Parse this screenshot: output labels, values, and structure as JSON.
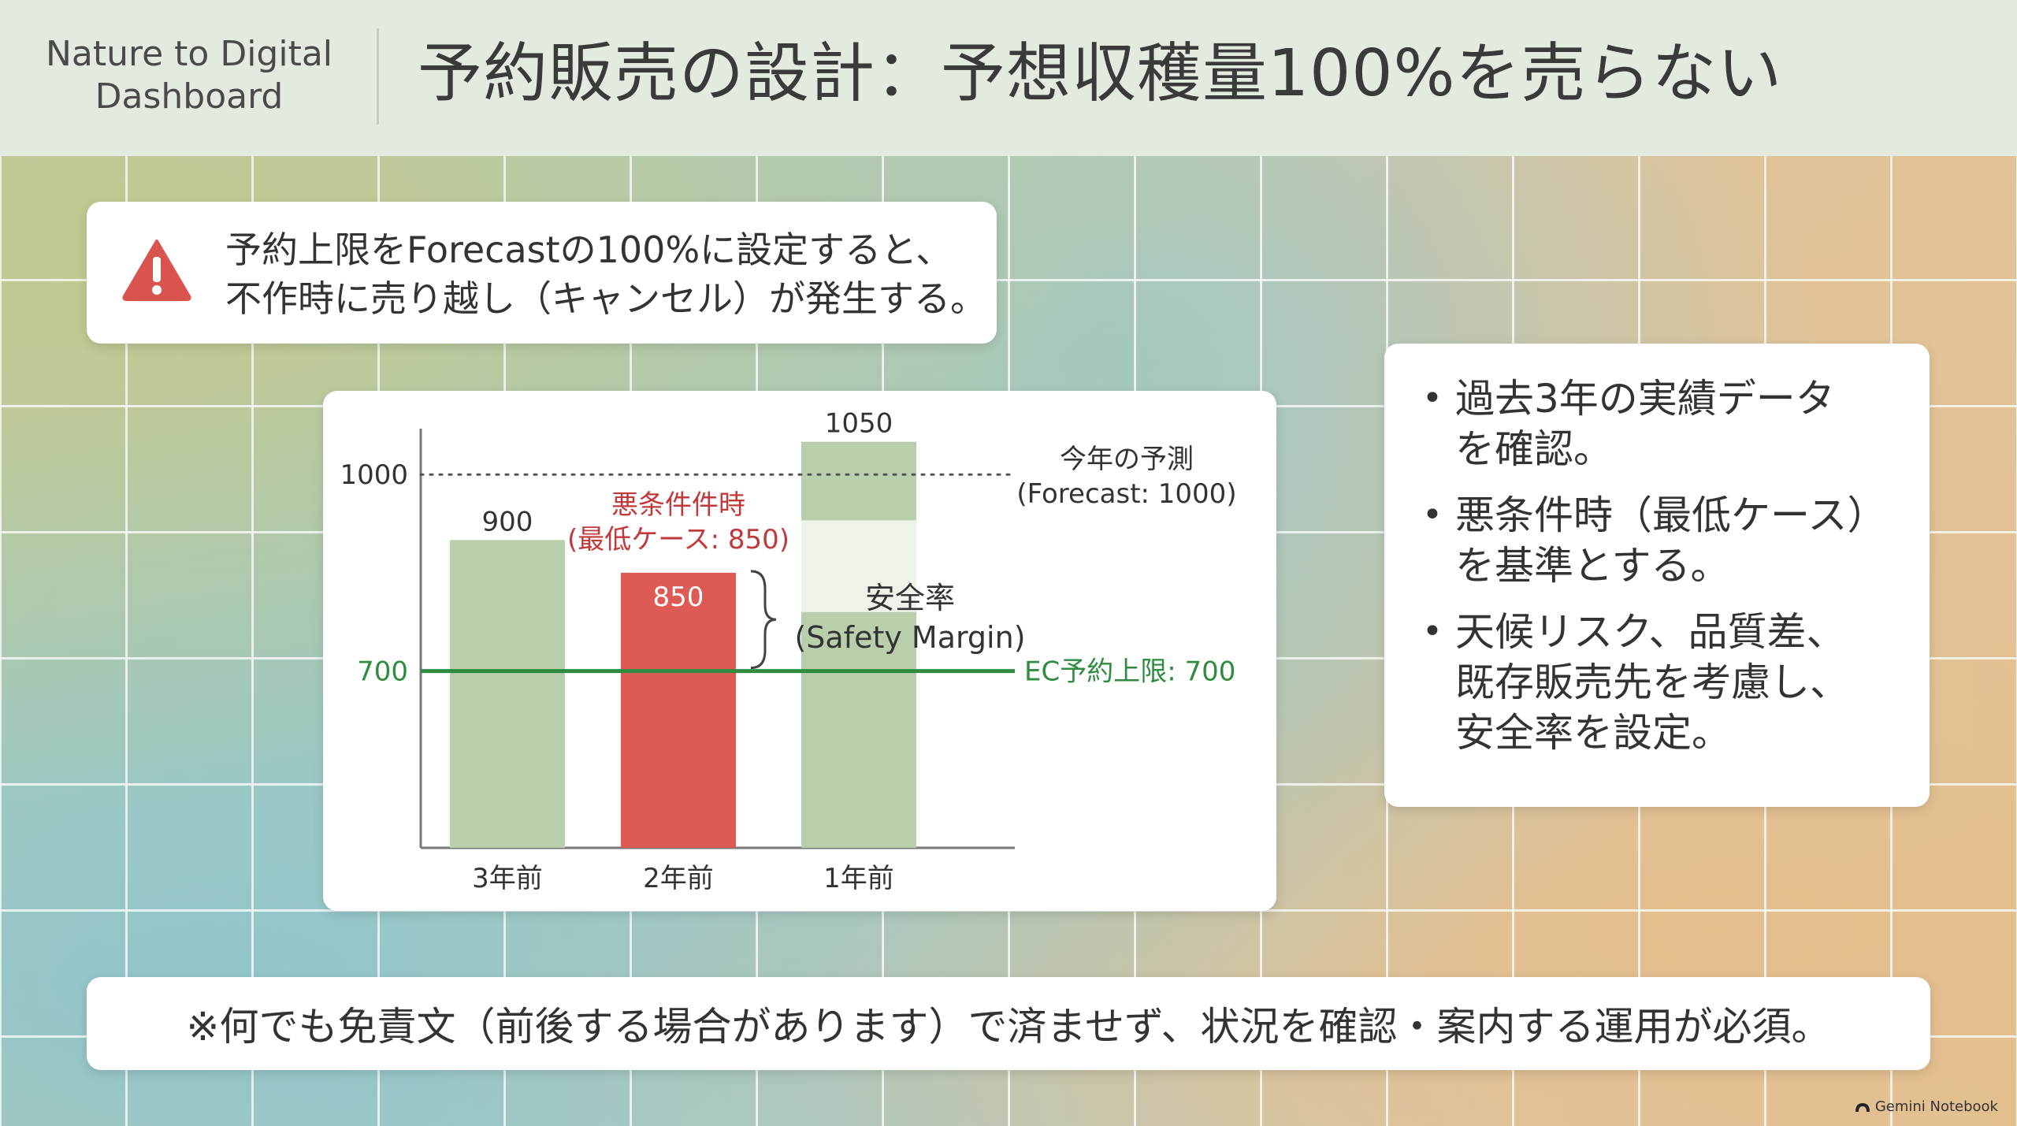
{
  "header": {
    "brand_line1": "Nature to Digital",
    "brand_line2": "Dashboard",
    "title": "予約販売の設計：予想収穫量100%を売らない"
  },
  "warning": {
    "icon": "warning-triangle-icon",
    "icon_color": "#d9534f",
    "line1": "予約上限をForecastの100%に設定すると、",
    "line2": "不作時に売り越し（キャンセル）が発生する。"
  },
  "chart_data": {
    "type": "bar",
    "categories": [
      "3年前",
      "2年前",
      "1年前"
    ],
    "values": [
      900,
      850,
      1050
    ],
    "value_labels": [
      "900",
      "850",
      "1050"
    ],
    "bar_colors": [
      "#b9cfab",
      "#de5a55",
      "#b9cfab"
    ],
    "ylim": [
      430,
      1070
    ],
    "y_ticks": [
      {
        "value": 1000,
        "label": "1000"
      },
      {
        "value": 700,
        "label": "700"
      }
    ],
    "reference_lines": [
      {
        "value": 1000,
        "style": "dotted",
        "color": "#555555",
        "label_line1": "今年の予測",
        "label_line2": "(Forecast: 1000)"
      },
      {
        "value": 700,
        "style": "solid",
        "color": "#2e8b3f",
        "label": "EC予約上限: 700"
      }
    ],
    "annotation_worst": {
      "line1": "悪条件件時",
      "line2": "(最低ケース: 850)",
      "color": "#c0393b"
    },
    "annotation_margin": {
      "line1": "安全率",
      "line2": "(Safety Margin)",
      "from": 850,
      "to": 700
    }
  },
  "bullets": [
    {
      "line1": "過去3年の実績データ",
      "line2": "を確認。"
    },
    {
      "line1": "悪条件時（最低ケース）",
      "line2": "を基準とする。"
    },
    {
      "line1": "天候リスク、品質差、",
      "line2": "既存販売先を考慮し、",
      "line3": "安全率を設定。"
    }
  ],
  "note": "※何でも免責文（前後する場合があります）で済ませず、状況を確認・案内する運用が必須。",
  "watermark": "Gemini Notebook"
}
